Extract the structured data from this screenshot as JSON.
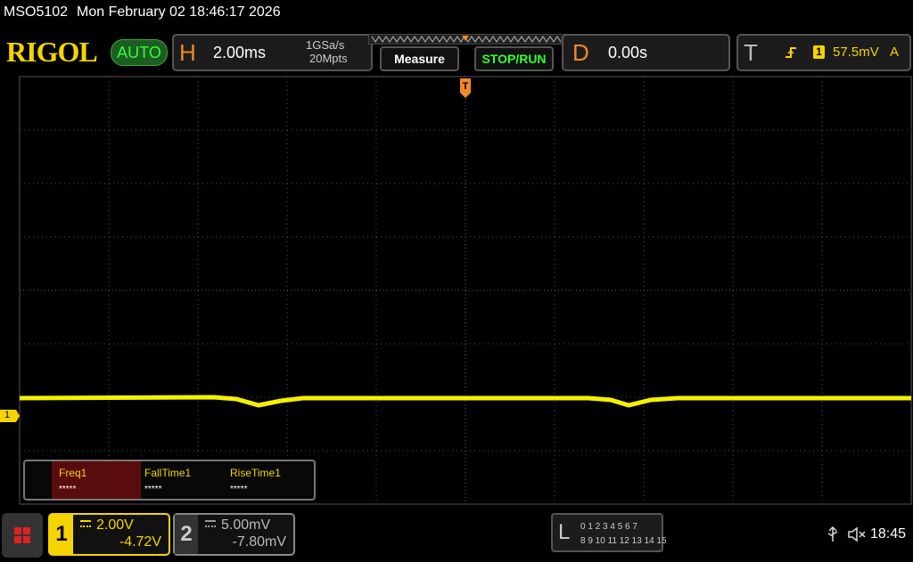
{
  "header": {
    "model": "MSO5102",
    "datetime": "Mon February 02 18:46:17 2026"
  },
  "toolbar": {
    "brand": "RIGOL",
    "mode": "AUTO",
    "horizontal": {
      "label": "H",
      "timebase": "2.00ms",
      "sample_rate": "1GSa/s",
      "memory_depth": "20Mpts"
    },
    "measure_button": "Measure",
    "run_button": "STOP/RUN",
    "delay": {
      "label": "D",
      "value": "0.00s"
    },
    "trigger": {
      "label": "T",
      "source": "1",
      "level": "57.5mV",
      "mode": "A"
    }
  },
  "screen": {
    "trigger_marker": "T",
    "channel_marker": "1"
  },
  "measurements": [
    {
      "name": "Freq1",
      "value": "*****"
    },
    {
      "name": "FallTime1",
      "value": "*****"
    },
    {
      "name": "RiseTime1",
      "value": "*****"
    }
  ],
  "channels": [
    {
      "number": "1",
      "scale": "2.00V",
      "offset": "-4.72V"
    },
    {
      "number": "2",
      "scale": "5.00mV",
      "offset": "-7.80mV"
    }
  ],
  "logic": {
    "label": "L",
    "rows": [
      "0 1 2 3  4 5 6 7",
      "8 9 10 11 12 13 14 15"
    ]
  },
  "status": {
    "time": "18:45"
  }
}
